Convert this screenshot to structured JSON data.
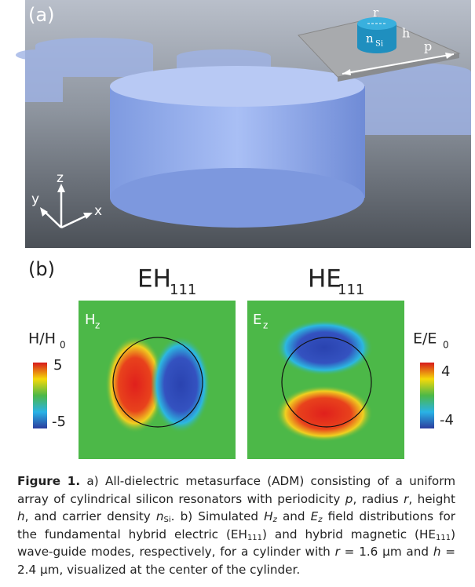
{
  "panel_a": {
    "label": "(a)",
    "inset": {
      "r": "r",
      "h": "h",
      "n": "n",
      "n_sub": "Si",
      "p": "p"
    },
    "axes": {
      "z": "z",
      "y": "y",
      "x": "x"
    }
  },
  "panel_b": {
    "label": "(b)",
    "maps": [
      {
        "title": "EH",
        "title_sub": "111",
        "field": "H",
        "field_sub": "z"
      },
      {
        "title": "HE",
        "title_sub": "111",
        "field": "E",
        "field_sub": "z"
      }
    ],
    "colorbars": [
      {
        "label": "H/H",
        "label_sub": "0",
        "max": 5,
        "min": -5
      },
      {
        "label": "E/E",
        "label_sub": "0",
        "max": 4,
        "min": -4
      }
    ]
  },
  "caption": {
    "runs": [
      "Figure 1.",
      " a) All-dielectric metasurface (ADM) consisting of a uniform array of cylindrical silicon resonators with periodicity ",
      "p",
      ", radius ",
      "r",
      ", height ",
      "h",
      ", and carrier density ",
      "n",
      "Si",
      ". b) Simulated ",
      "H",
      "z",
      " and ",
      "E",
      "z",
      " field distributions for the fundamental hybrid electric (EH",
      "111",
      ") and hybrid magnetic (HE",
      "111",
      ") wave-guide modes, respectively, for a cylinder with ",
      "r",
      " = 1.6 µm and ",
      "h",
      " = 2.4 µm, visualized at the center of the cylinder."
    ]
  }
}
